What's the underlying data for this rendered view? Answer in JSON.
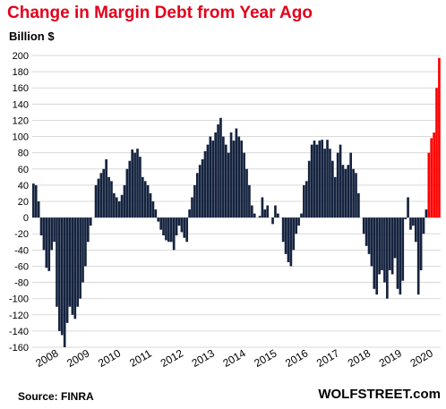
{
  "chart_data": {
    "type": "bar",
    "title": "Change in Margin Debt from Year Ago",
    "ylabel": "Billion $",
    "source": "Source: FINRA",
    "brand": "WOLFSTREET.com",
    "ylim": [
      -160,
      200
    ],
    "yticks": [
      -160,
      -140,
      -120,
      -100,
      -80,
      -60,
      -40,
      -20,
      0,
      20,
      40,
      60,
      80,
      100,
      120,
      140,
      160,
      180,
      200
    ],
    "xticks": [
      "2008",
      "2009",
      "2010",
      "2011",
      "2012",
      "2013",
      "2014",
      "2015",
      "2016",
      "2017",
      "2018",
      "2019",
      "2020"
    ],
    "grid": true,
    "colors": {
      "normal": "#15233f",
      "highlight": "#ff0000",
      "grid": "#d9d9d9"
    },
    "start": "2008-01",
    "highlight_from": "2020-09",
    "values": [
      42,
      40,
      20,
      -22,
      -40,
      -62,
      -66,
      -40,
      -30,
      -110,
      -140,
      -145,
      -160,
      -130,
      -110,
      -120,
      -125,
      -110,
      -100,
      -80,
      -60,
      -30,
      -10,
      0,
      40,
      48,
      55,
      60,
      72,
      50,
      45,
      30,
      25,
      20,
      28,
      40,
      60,
      70,
      84,
      80,
      85,
      75,
      50,
      45,
      40,
      30,
      20,
      10,
      -5,
      -15,
      -22,
      -28,
      -30,
      -30,
      -40,
      -22,
      -10,
      -18,
      -25,
      -30,
      10,
      25,
      40,
      55,
      65,
      72,
      82,
      90,
      100,
      95,
      105,
      115,
      123,
      100,
      90,
      80,
      105,
      95,
      110,
      100,
      95,
      80,
      60,
      40,
      15,
      5,
      0,
      2,
      25,
      10,
      15,
      0,
      -8,
      15,
      5,
      0,
      -30,
      -45,
      -55,
      -60,
      -40,
      -20,
      -10,
      5,
      40,
      45,
      70,
      90,
      95,
      90,
      95,
      96,
      85,
      96,
      85,
      70,
      50,
      80,
      90,
      65,
      60,
      65,
      80,
      60,
      55,
      30,
      0,
      -20,
      -35,
      -45,
      -60,
      -88,
      -95,
      -70,
      -65,
      -80,
      -100,
      -65,
      -70,
      -50,
      -88,
      -95,
      -78,
      -2,
      25,
      -15,
      -10,
      -30,
      -95,
      -65,
      -20,
      10,
      80,
      98,
      105,
      160,
      197
    ]
  }
}
